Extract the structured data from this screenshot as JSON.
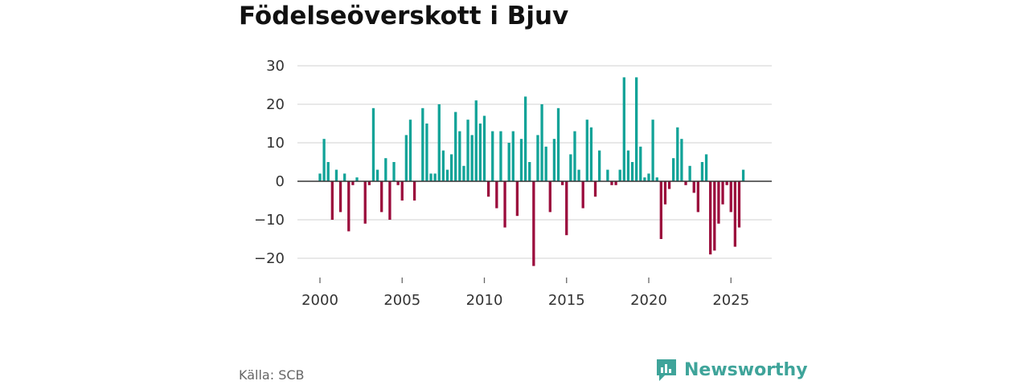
{
  "title": "Födelseöverskott i Bjuv",
  "source": "Källa: SCB",
  "brand": "Newsworthy",
  "colors": {
    "positive": "#12a398",
    "negative": "#9b0b3c",
    "grid": "#d9d9d9",
    "zero": "#333333",
    "brand": "#3fa49a"
  },
  "chart_data": {
    "type": "bar",
    "title": "Födelseöverskott i Bjuv",
    "xlabel": "",
    "ylabel": "",
    "ylim": [
      -25,
      32
    ],
    "y_ticks": [
      30,
      20,
      10,
      0,
      -10,
      -20
    ],
    "y_tick_labels": [
      "30",
      "20",
      "10",
      "0",
      "−10",
      "−20"
    ],
    "x_ticks": [
      2000,
      2005,
      2010,
      2015,
      2020,
      2025
    ],
    "x_tick_labels": [
      "2000",
      "2005",
      "2010",
      "2015",
      "2020",
      "2025"
    ],
    "grid": true,
    "periods_per_year": 4,
    "start_period": "2000 Q1",
    "values": [
      2,
      11,
      5,
      -10,
      3,
      -8,
      2,
      -13,
      -1,
      1,
      0,
      -11,
      -1,
      19,
      3,
      -8,
      6,
      -10,
      5,
      -1,
      -5,
      12,
      16,
      -5,
      0,
      19,
      15,
      2,
      2,
      20,
      8,
      3,
      7,
      18,
      13,
      4,
      16,
      12,
      21,
      15,
      17,
      -4,
      13,
      -7,
      13,
      -12,
      10,
      13,
      -9,
      11,
      22,
      5,
      -22,
      12,
      20,
      9,
      -8,
      11,
      19,
      -1,
      -14,
      7,
      13,
      3,
      -7,
      16,
      14,
      -4,
      8,
      0,
      3,
      -1,
      -1,
      3,
      27,
      8,
      5,
      27,
      9,
      1,
      2,
      16,
      1,
      -15,
      -6,
      -2,
      6,
      14,
      11,
      -1,
      4,
      -3,
      -8,
      5,
      7,
      -19,
      -18,
      -11,
      -6,
      -1,
      -8,
      -17,
      -12,
      3
    ]
  }
}
